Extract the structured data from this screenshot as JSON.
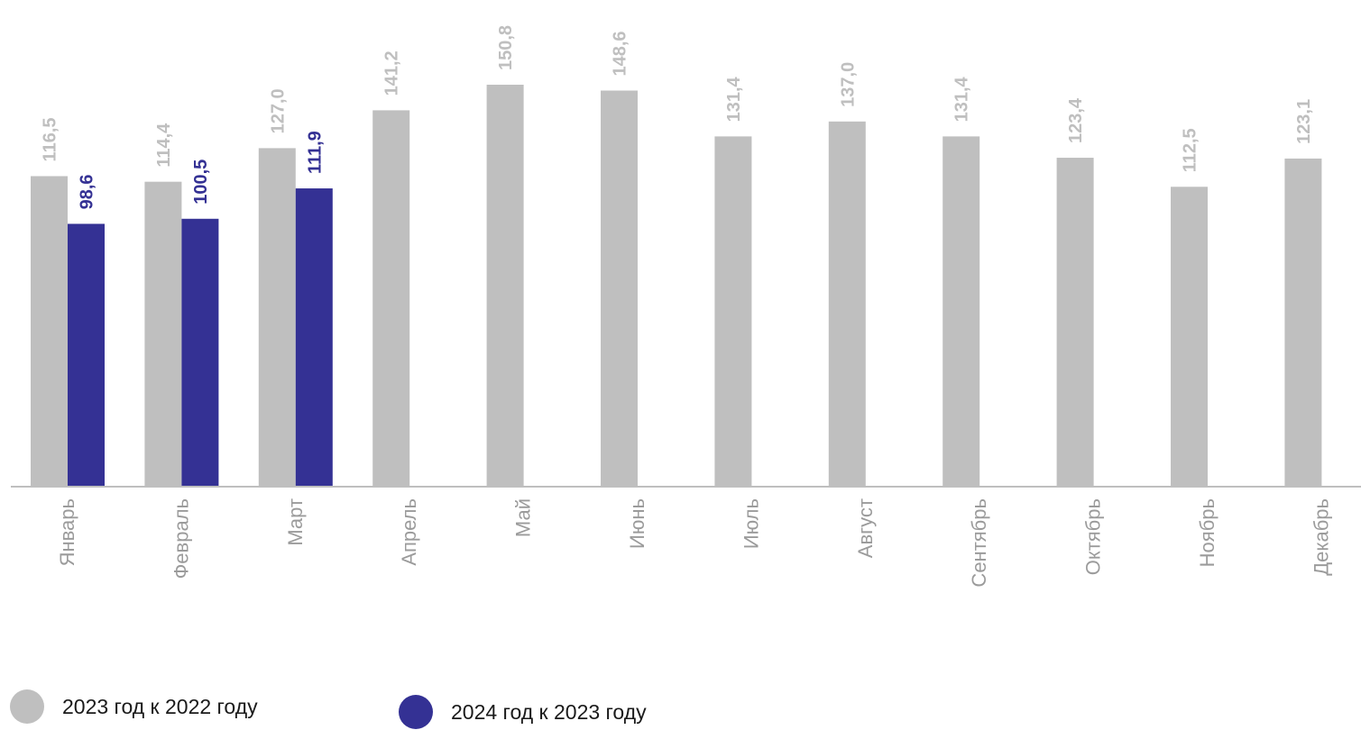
{
  "chart_data": {
    "type": "bar",
    "categories": [
      "Январь",
      "Февраль",
      "Март",
      "Апрель",
      "Май",
      "Июнь",
      "Июль",
      "Август",
      "Сентябрь",
      "Октябрь",
      "Ноябрь",
      "Декабрь"
    ],
    "series": [
      {
        "name": "2023 год к  2022 году",
        "color": "#bfbfbf",
        "values": [
          116.5,
          114.4,
          127.0,
          141.2,
          150.8,
          148.6,
          131.4,
          137.0,
          131.4,
          123.4,
          112.5,
          123.1
        ],
        "labels": [
          "116,5",
          "114,4",
          "127,0",
          "141,2",
          "150,8",
          "148,6",
          "131,4",
          "137,0",
          "131,4",
          "123,4",
          "112,5",
          "123,1"
        ]
      },
      {
        "name": "2024 год к  2023 году",
        "color": "#343194",
        "values": [
          98.6,
          100.5,
          111.9,
          null,
          null,
          null,
          null,
          null,
          null,
          null,
          null,
          null
        ],
        "labels": [
          "98,6",
          "100,5",
          "111,9",
          null,
          null,
          null,
          null,
          null,
          null,
          null,
          null,
          null
        ]
      }
    ],
    "title": "",
    "xlabel": "",
    "ylabel": "",
    "ylim": [
      0,
      150.8
    ],
    "grid": false,
    "legend_position": "bottom-left"
  },
  "colors": {
    "axis": "#bfbfbf",
    "category_text": "#9b9b9b"
  }
}
